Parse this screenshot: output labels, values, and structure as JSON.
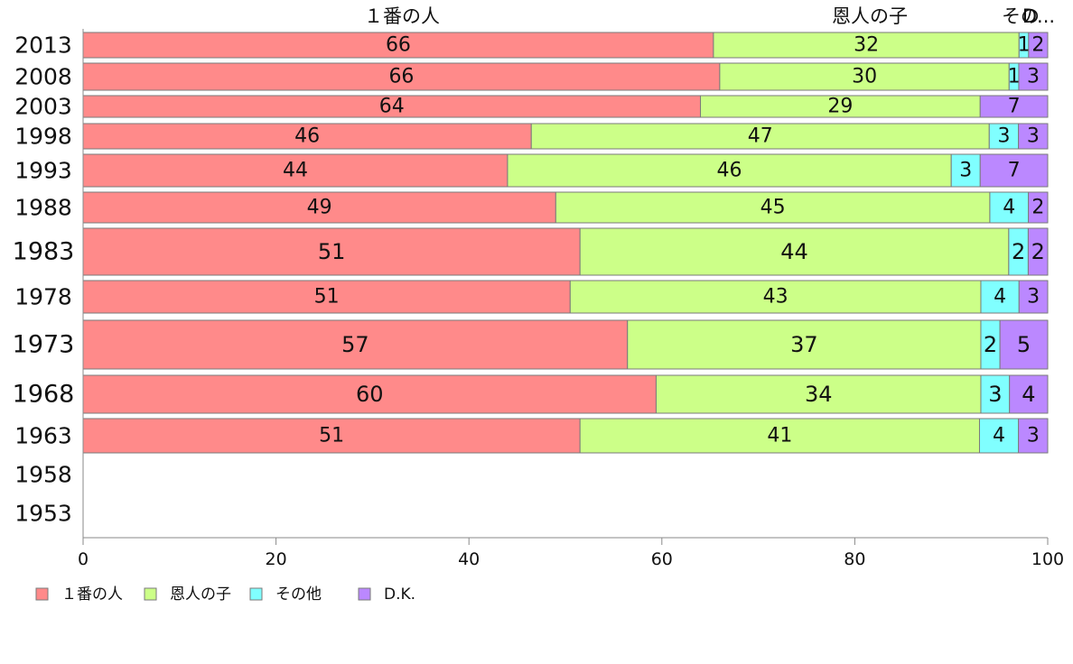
{
  "chart_data": {
    "type": "bar",
    "orientation": "horizontal",
    "stacked": true,
    "title": "",
    "xlabel": "",
    "ylabel": "",
    "xlim": [
      0,
      100
    ],
    "x_ticks": [
      "0",
      "20",
      "40",
      "60",
      "80",
      "100"
    ],
    "grid": false,
    "legend_position": "bottom-left",
    "categories": [
      "2013",
      "2008",
      "2003",
      "1998",
      "1993",
      "1988",
      "1983",
      "1978",
      "1973",
      "1968",
      "1963",
      "1958",
      "1953"
    ],
    "series": [
      {
        "name": "１番の人",
        "color": "#ff8a8a",
        "values": [
          66,
          66,
          64,
          46,
          44,
          49,
          51,
          51,
          57,
          60,
          51,
          null,
          null
        ]
      },
      {
        "name": "恩人の子",
        "color": "#ccff88",
        "values": [
          32,
          30,
          29,
          47,
          46,
          45,
          44,
          43,
          37,
          34,
          41,
          null,
          null
        ]
      },
      {
        "name": "その他",
        "color": "#80ffff",
        "values": [
          1,
          1,
          0,
          3,
          3,
          4,
          2,
          4,
          2,
          3,
          4,
          null,
          null
        ]
      },
      {
        "name": "D.K.",
        "color": "#bb88ff",
        "values": [
          2,
          3,
          7,
          3,
          7,
          2,
          2,
          3,
          5,
          4,
          3,
          null,
          null
        ]
      }
    ],
    "top_labels": [
      "１番の人",
      "恩人の子",
      "その",
      "D..."
    ]
  }
}
